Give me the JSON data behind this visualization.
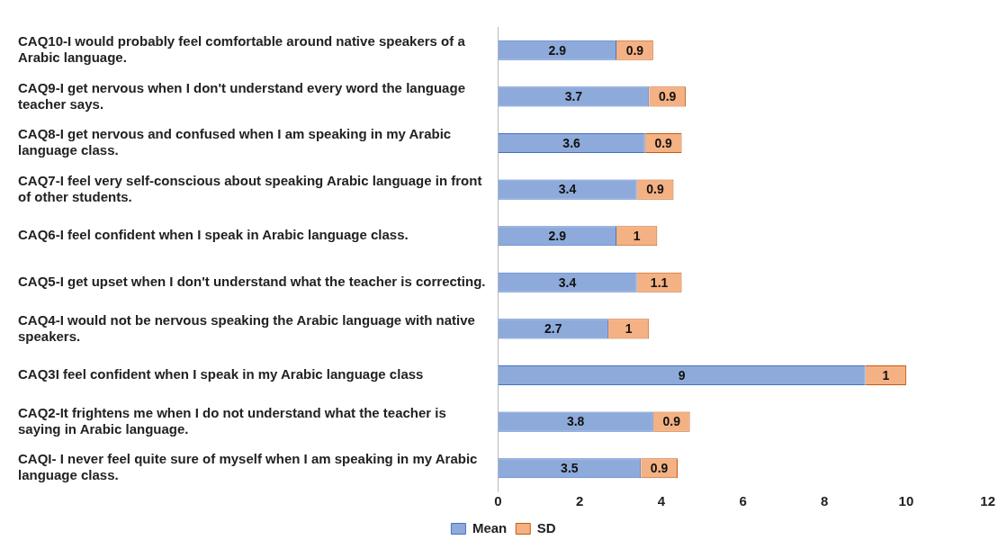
{
  "chart_data": {
    "type": "bar",
    "orientation": "horizontal",
    "stacked": true,
    "categories": [
      "CAQ10-I would probably feel comfortable around native speakers of a Arabic language.",
      "CAQ9-I get nervous when I don't understand every word the language teacher says.",
      "CAQ8-I get nervous and confused when I am speaking in my Arabic language class.",
      "CAQ7-I feel very self-conscious about speaking Arabic language in front of other students.",
      "CAQ6-I feel confident when I speak in Arabic language class.",
      "CAQ5-I get upset when I don't understand what the teacher is correcting.",
      "CAQ4-I would not be nervous speaking the Arabic language with native speakers.",
      "CAQ3I feel confident when I speak in my Arabic language class",
      "CAQ2-It frightens me when I do not understand what the teacher is saying in Arabic language.",
      "CAQI- I never feel quite sure of myself when I am speaking in my Arabic language class."
    ],
    "series": [
      {
        "name": "Mean",
        "color": "#8eaadb",
        "values": [
          2.9,
          3.7,
          3.6,
          3.4,
          2.9,
          3.4,
          2.7,
          9,
          3.8,
          3.5
        ]
      },
      {
        "name": "SD",
        "color": "#f4b183",
        "values": [
          0.9,
          0.9,
          0.9,
          0.9,
          1,
          1.1,
          1,
          1,
          0.9,
          0.9
        ]
      }
    ],
    "xlim": [
      0,
      12
    ],
    "xticks": [
      0,
      2,
      4,
      6,
      8,
      10,
      12
    ],
    "grid": false,
    "legend": "bottom",
    "data_labels": true
  }
}
